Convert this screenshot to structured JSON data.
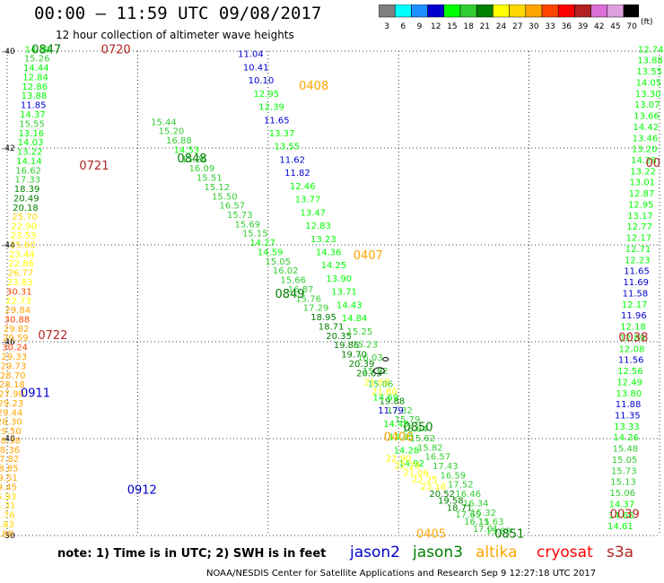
{
  "title": "00:00 — 11:59 UTC 09/08/2017",
  "subtitle": "12 hour collection of altimeter wave heights",
  "colorbar": {
    "unit": "(ft)",
    "labels": [
      "3",
      "6",
      "9",
      "12",
      "15",
      "18",
      "21",
      "24",
      "27",
      "30",
      "33",
      "36",
      "39",
      "42",
      "45",
      "70"
    ],
    "colors": [
      "#7f7f7f",
      "#00ffff",
      "#1e90ff",
      "#0000cd",
      "#00ff00",
      "#32cd32",
      "#008000",
      "#ffff00",
      "#ffd700",
      "#ffa500",
      "#ff4500",
      "#ff0000",
      "#b22222",
      "#da70d6",
      "#dda0dd",
      "#000000"
    ]
  },
  "axes": {
    "lat_labels": [
      "-40",
      "-42",
      "-44",
      "-46",
      "-48",
      "-50"
    ],
    "lon_labels": [
      "30",
      "33",
      "36",
      "39",
      "42",
      "45"
    ]
  },
  "note": "note: 1) Time is in UTC; 2) SWH is in feet",
  "satellites": [
    {
      "name": "jason2",
      "color": "#0000cd"
    },
    {
      "name": "jason3",
      "color": "#008000"
    },
    {
      "name": "altika",
      "color": "#ffa500"
    },
    {
      "name": "cryosat",
      "color": "#ff0000"
    },
    {
      "name": "s3a",
      "color": "#b22222"
    }
  ],
  "footer": "NOAA/NESDIS Center for Satellite Applications and Research   Sep  9 12:27:18 UTC 2017",
  "chart_data": {
    "type": "table",
    "time_labels": [
      {
        "text": "0847",
        "lon": 30.9,
        "lat": -39.95,
        "color": "#008000"
      },
      {
        "text": "0720",
        "lon": 32.5,
        "lat": -39.95,
        "color": "#b22222"
      },
      {
        "text": "0721",
        "lon": 32.0,
        "lat": -42.35,
        "color": "#b22222"
      },
      {
        "text": "0848",
        "lon": 34.25,
        "lat": -42.2,
        "color": "#008000"
      },
      {
        "text": "0408",
        "lon": 37.05,
        "lat": -40.7,
        "color": "#ffa500"
      },
      {
        "text": "0407",
        "lon": 38.3,
        "lat": -44.2,
        "color": "#ffa500"
      },
      {
        "text": "0849",
        "lon": 36.5,
        "lat": -45.0,
        "color": "#008000"
      },
      {
        "text": "0722",
        "lon": 31.05,
        "lat": -45.85,
        "color": "#b22222"
      },
      {
        "text": "0911",
        "lon": 30.65,
        "lat": -47.05,
        "color": "#0000cd"
      },
      {
        "text": "0850",
        "lon": 39.45,
        "lat": -47.75,
        "color": "#008000"
      },
      {
        "text": "0406",
        "lon": 39.0,
        "lat": -47.95,
        "color": "#ffa500"
      },
      {
        "text": "0912",
        "lon": 33.1,
        "lat": -49.05,
        "color": "#0000cd"
      },
      {
        "text": "0405",
        "lon": 39.75,
        "lat": -49.95,
        "color": "#ffa500"
      },
      {
        "text": "0851",
        "lon": 41.55,
        "lat": -49.95,
        "color": "#008000"
      },
      {
        "text": "0038",
        "lon": 44.4,
        "lat": -45.9,
        "color": "#b22222"
      },
      {
        "text": "0039",
        "lon": 44.2,
        "lat": -49.55,
        "color": "#b22222"
      },
      {
        "text": "00",
        "lon": 44.85,
        "lat": -42.3,
        "color": "#b22222"
      }
    ],
    "swh_tracks": [
      {
        "satellite": "cryosat",
        "start": [
          30.7,
          -39.95
        ],
        "end": [
          29.85,
          -49.95
        ],
        "color_rule": "swh",
        "values": [
          14.3,
          15.26,
          14.44,
          12.84,
          12.86,
          13.88,
          11.85,
          14.37,
          15.55,
          13.16,
          14.03,
          13.22,
          14.14,
          16.62,
          17.33,
          18.39,
          20.49,
          20.18,
          25.7,
          22.9,
          23.53,
          25.6,
          23.44,
          22.86,
          26.77,
          23.83,
          30.31,
          22.73,
          29.84,
          30.88,
          29.82,
          29.59,
          30.24,
          29.33,
          29.73,
          28.7,
          28.18,
          27.9,
          29.23,
          29.44,
          28.3,
          29.5,
          28.38,
          28.36,
          27.82,
          28.85,
          29.51,
          29.45,
          25.93,
          25.31,
          25.76,
          24.83,
          27.88
        ]
      },
      {
        "satellite": "jason3",
        "start": [
          33.6,
          -41.45
        ],
        "end": [
          41.3,
          -49.9
        ],
        "color_rule": "swh",
        "values": [
          15.44,
          15.2,
          16.88,
          14.53,
          15.26,
          16.09,
          15.51,
          15.12,
          15.5,
          16.57,
          15.73,
          15.69,
          15.15,
          14.27,
          14.59,
          15.05,
          16.02,
          15.66,
          16.87,
          15.76,
          17.29,
          18.95,
          18.71,
          20.35,
          19.86,
          19.7,
          20.39,
          20.63,
          21.68,
          21.8,
          19.88,
          17.32,
          15.79,
          16.84,
          15.62,
          15.82,
          16.57,
          17.43,
          16.59,
          17.52,
          16.46,
          16.34,
          15.32,
          15.63,
          15.89
        ]
      },
      {
        "satellite": "jason2",
        "start": [
          35.6,
          -40.05
        ],
        "end": [
          39.3,
          -48.5
        ],
        "color_rule": "swh",
        "values": [
          11.04,
          10.41,
          10.1,
          12.95,
          12.39,
          11.65,
          13.37,
          13.55,
          11.62,
          11.82,
          12.46,
          13.77,
          13.47,
          12.83,
          13.23,
          14.36,
          14.25,
          13.9,
          13.71,
          14.43,
          14.84,
          15.25,
          15.23,
          16.03,
          15.02,
          15.06,
          14.69,
          11.79,
          14.45,
          13.85,
          14.28,
          14.92
        ]
      },
      {
        "satellite": "altika",
        "start": [
          39.0,
          -48.4
        ],
        "end": [
          41.0,
          -49.85
        ],
        "color_rule": "swh",
        "values": [
          22.9,
          22.29,
          21.06,
          22.25,
          23.16,
          20.52,
          19.58,
          18.71,
          17.65,
          16.11,
          17.01
        ]
      },
      {
        "satellite": "s3a",
        "start": [
          44.8,
          -39.95
        ],
        "end": [
          44.1,
          -49.8
        ],
        "color_rule": "swh",
        "values": [
          12.74,
          13.88,
          13.55,
          14.05,
          13.3,
          13.07,
          13.66,
          14.42,
          13.46,
          13.2,
          14.28,
          13.22,
          13.01,
          12.87,
          12.95,
          13.17,
          12.77,
          12.17,
          12.71,
          12.23,
          11.65,
          11.69,
          11.58,
          12.17,
          11.96,
          12.18,
          12.89,
          12.08,
          11.56,
          12.56,
          12.49,
          13.8,
          11.88,
          11.35,
          13.33,
          14.26,
          15.48,
          15.05,
          15.73,
          15.13,
          15.06,
          14.37,
          14.66,
          14.61
        ]
      }
    ]
  }
}
